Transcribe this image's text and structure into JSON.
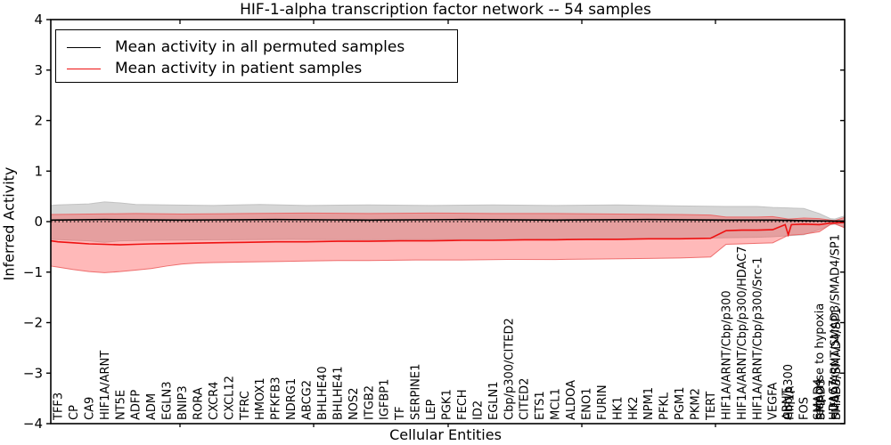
{
  "chart_data": {
    "type": "line",
    "title": "HIF-1-alpha transcription factor network -- 54 samples",
    "xlabel": "Cellular Entities",
    "ylabel": "Inferred Activity",
    "ylim": [
      -4,
      4
    ],
    "yticks": [
      -4,
      -3,
      -2,
      -1,
      0,
      1,
      2,
      3,
      4
    ],
    "grid": false,
    "legend_position": "upper left",
    "zero_line": 0,
    "categories": [
      "TFF3",
      "CP",
      "CA9",
      "HIF1A/ARNT",
      "NT5E",
      "ADFP",
      "ADM",
      "EGLN3",
      "BNIP3",
      "RORA",
      "CXCR4",
      "CXCL12",
      "TFRC",
      "HMOX1",
      "PFKFB3",
      "NDRG1",
      "ABCG2",
      "BHLHE40",
      "BHLHE41",
      "NOS2",
      "ITGB2",
      "IGFBP1",
      "TF",
      "SERPINE1",
      "LEP",
      "PGK1",
      "FECH",
      "ID2",
      "EGLN1",
      "Cbp/p300/CITED2",
      "CITED2",
      "ETS1",
      "MCL1",
      "ALDOA",
      "ENO1",
      "FURIN",
      "HK1",
      "HK2",
      "NPM1",
      "PFKL",
      "PGM1",
      "PKM2",
      "TERT",
      "HIF1A/ARNT/Cbp/p300",
      "HIF1A/ARNT/Cbp/p300/HDAC7",
      "HIF1A/ARNT/Cbp/p300/Src-1",
      "VEGFA",
      "Cbp/p300",
      "FOS",
      "response to hypoxia",
      "HIF1A/ARNT/SMAD3/SMAD4/SP1"
    ],
    "overlapping_label_clusters": [
      {
        "slot": 47,
        "labels": [
          "HIF1A",
          "ARNT"
        ]
      },
      {
        "slot": 49,
        "labels": [
          "SMAD3",
          "SMAD4",
          "SP1"
        ]
      },
      {
        "slot": 50,
        "labels": [
          "SMAD3/SMAD4/SP1",
          "HDAC7"
        ]
      }
    ],
    "series": [
      {
        "name": "Mean activity in all permuted samples",
        "color": "#000000",
        "points": [
          [
            -0.46,
            0.03
          ],
          [
            3,
            0.04
          ],
          [
            8,
            0.03
          ],
          [
            14,
            0.04
          ],
          [
            20,
            0.03
          ],
          [
            26,
            0.04
          ],
          [
            32,
            0.03
          ],
          [
            38,
            0.04
          ],
          [
            43,
            0.03
          ],
          [
            46,
            0.03
          ],
          [
            48,
            0.02
          ],
          [
            50,
            0.01
          ],
          [
            50.6,
            0.01
          ]
        ]
      },
      {
        "name": "Mean activity in patient samples",
        "color": "#ee1111",
        "points": [
          [
            -0.46,
            -0.38
          ],
          [
            0,
            -0.4
          ],
          [
            1,
            -0.42
          ],
          [
            2,
            -0.44
          ],
          [
            3,
            -0.45
          ],
          [
            4,
            -0.46
          ],
          [
            5,
            -0.45
          ],
          [
            6,
            -0.44
          ],
          [
            8,
            -0.43
          ],
          [
            10,
            -0.42
          ],
          [
            12,
            -0.41
          ],
          [
            14,
            -0.4
          ],
          [
            16,
            -0.4
          ],
          [
            18,
            -0.39
          ],
          [
            20,
            -0.39
          ],
          [
            22,
            -0.38
          ],
          [
            24,
            -0.38
          ],
          [
            26,
            -0.37
          ],
          [
            28,
            -0.37
          ],
          [
            30,
            -0.36
          ],
          [
            32,
            -0.36
          ],
          [
            34,
            -0.35
          ],
          [
            36,
            -0.35
          ],
          [
            38,
            -0.34
          ],
          [
            40,
            -0.34
          ],
          [
            42,
            -0.33
          ],
          [
            43,
            -0.18
          ],
          [
            44,
            -0.17
          ],
          [
            45,
            -0.17
          ],
          [
            46,
            -0.16
          ],
          [
            46.8,
            -0.06
          ],
          [
            47,
            -0.26
          ],
          [
            47.2,
            -0.06
          ],
          [
            48,
            -0.05
          ],
          [
            49,
            -0.06
          ],
          [
            49.7,
            -0.03
          ],
          [
            50.6,
            -0.02
          ]
        ]
      }
    ],
    "bands": [
      {
        "name": "permuted-confidence-band",
        "fill": "#d6d6d6",
        "edge": "#c2c2c2",
        "upper": [
          [
            -0.46,
            0.32
          ],
          [
            0,
            0.33
          ],
          [
            2,
            0.35
          ],
          [
            3,
            0.39
          ],
          [
            4,
            0.37
          ],
          [
            5,
            0.34
          ],
          [
            7,
            0.33
          ],
          [
            10,
            0.32
          ],
          [
            13,
            0.34
          ],
          [
            16,
            0.32
          ],
          [
            20,
            0.33
          ],
          [
            24,
            0.32
          ],
          [
            28,
            0.33
          ],
          [
            32,
            0.32
          ],
          [
            36,
            0.33
          ],
          [
            40,
            0.31
          ],
          [
            43,
            0.3
          ],
          [
            45,
            0.3
          ],
          [
            46,
            0.28
          ],
          [
            47,
            0.27
          ],
          [
            48,
            0.26
          ],
          [
            49,
            0.16
          ],
          [
            49.7,
            0.06
          ],
          [
            50,
            0.05
          ],
          [
            50.6,
            0.11
          ]
        ],
        "lower": [
          [
            -0.46,
            -0.35
          ],
          [
            2,
            -0.38
          ],
          [
            3,
            -0.41
          ],
          [
            4,
            -0.38
          ],
          [
            6,
            -0.37
          ],
          [
            10,
            -0.36
          ],
          [
            15,
            -0.35
          ],
          [
            20,
            -0.36
          ],
          [
            25,
            -0.35
          ],
          [
            30,
            -0.35
          ],
          [
            35,
            -0.34
          ],
          [
            40,
            -0.34
          ],
          [
            43,
            -0.32
          ],
          [
            45,
            -0.31
          ],
          [
            46,
            -0.3
          ],
          [
            47,
            -0.28
          ],
          [
            48,
            -0.26
          ],
          [
            49,
            -0.16
          ],
          [
            49.7,
            -0.06
          ],
          [
            50,
            -0.05
          ],
          [
            50.6,
            -0.11
          ]
        ]
      },
      {
        "name": "patient-confidence-band",
        "fill": "rgba(255,70,70,0.38)",
        "edge": "rgba(235,90,90,0.85)",
        "upper": [
          [
            -0.46,
            0.14
          ],
          [
            2,
            0.15
          ],
          [
            5,
            0.16
          ],
          [
            8,
            0.15
          ],
          [
            12,
            0.16
          ],
          [
            16,
            0.17
          ],
          [
            20,
            0.16
          ],
          [
            24,
            0.17
          ],
          [
            28,
            0.16
          ],
          [
            32,
            0.16
          ],
          [
            36,
            0.15
          ],
          [
            40,
            0.14
          ],
          [
            42,
            0.13
          ],
          [
            43,
            0.09
          ],
          [
            45,
            0.09
          ],
          [
            46,
            0.1
          ],
          [
            47,
            0.05
          ],
          [
            48,
            0.07
          ],
          [
            49,
            0.06
          ],
          [
            49.7,
            0.03
          ],
          [
            50,
            0.02
          ],
          [
            50.6,
            0.08
          ]
        ],
        "lower": [
          [
            -0.46,
            -0.88
          ],
          [
            0,
            -0.9
          ],
          [
            1,
            -0.95
          ],
          [
            2,
            -0.99
          ],
          [
            3,
            -1.01
          ],
          [
            4,
            -0.99
          ],
          [
            5,
            -0.96
          ],
          [
            6,
            -0.93
          ],
          [
            7,
            -0.88
          ],
          [
            8,
            -0.84
          ],
          [
            9,
            -0.82
          ],
          [
            10,
            -0.81
          ],
          [
            12,
            -0.8
          ],
          [
            14,
            -0.79
          ],
          [
            16,
            -0.78
          ],
          [
            18,
            -0.77
          ],
          [
            20,
            -0.77
          ],
          [
            23,
            -0.76
          ],
          [
            26,
            -0.76
          ],
          [
            29,
            -0.75
          ],
          [
            32,
            -0.75
          ],
          [
            35,
            -0.74
          ],
          [
            38,
            -0.73
          ],
          [
            40,
            -0.72
          ],
          [
            42,
            -0.7
          ],
          [
            43,
            -0.45
          ],
          [
            44,
            -0.44
          ],
          [
            45,
            -0.43
          ],
          [
            46,
            -0.42
          ],
          [
            47,
            -0.27
          ],
          [
            48,
            -0.25
          ],
          [
            49,
            -0.2
          ],
          [
            49.7,
            -0.06
          ],
          [
            50,
            -0.04
          ],
          [
            50.6,
            -0.12
          ]
        ]
      }
    ]
  },
  "legend": {
    "items": [
      {
        "label": "Mean activity in all permuted samples",
        "color": "#000000"
      },
      {
        "label": "Mean activity in patient samples",
        "color": "#ee1111"
      }
    ]
  }
}
